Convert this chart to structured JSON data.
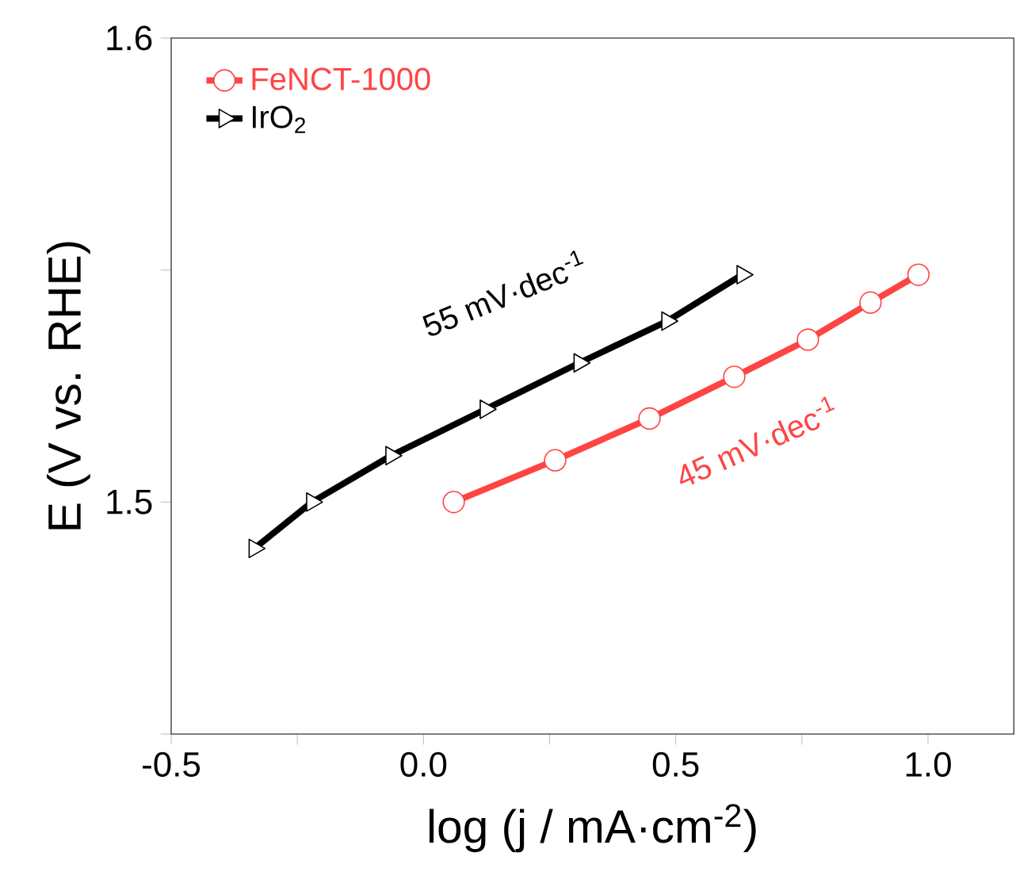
{
  "chart_data": {
    "type": "line",
    "xlabel": "log (j / mA·cm$^{-2}$)",
    "ylabel": "E (V vs. RHE)",
    "xlim": [
      -0.5,
      1.17
    ],
    "ylim": [
      1.45,
      1.6
    ],
    "xticks": [
      {
        "value": -0.5,
        "label": "-0.5"
      },
      {
        "value": -0.25,
        "label": null
      },
      {
        "value": 0,
        "label": "0.0"
      },
      {
        "value": 0.25,
        "label": null
      },
      {
        "value": 0.5,
        "label": "0.5"
      },
      {
        "value": 0.75,
        "label": null
      },
      {
        "value": 1.0,
        "label": "1.0"
      }
    ],
    "yticks": [
      {
        "value": 1.45,
        "label": null
      },
      {
        "value": 1.5,
        "label": "1.5"
      },
      {
        "value": 1.55,
        "label": null
      },
      {
        "value": 1.6,
        "label": "1.6"
      }
    ],
    "series": [
      {
        "name": "FeNCT-1000",
        "color": "#ff4444",
        "marker": "circle",
        "x": [
          0.06,
          0.261,
          0.448,
          0.616,
          0.762,
          0.886,
          0.981
        ],
        "values": [
          1.5,
          1.509,
          1.518,
          1.527,
          1.535,
          1.543,
          1.549
        ]
      },
      {
        "name": "IrO$_{2}$",
        "color": "#000000",
        "marker": "triangle",
        "x": [
          -0.335,
          -0.221,
          -0.064,
          0.123,
          0.309,
          0.483,
          0.632
        ],
        "values": [
          1.49,
          1.5,
          1.51,
          1.52,
          1.53,
          1.539,
          1.549
        ]
      }
    ],
    "annotations": [
      "45 mV·dec$^{-1}$",
      "55 mV·dec$^{-1}$"
    ],
    "legend": "top left",
    "line_style": "solid",
    "grid": false
  }
}
